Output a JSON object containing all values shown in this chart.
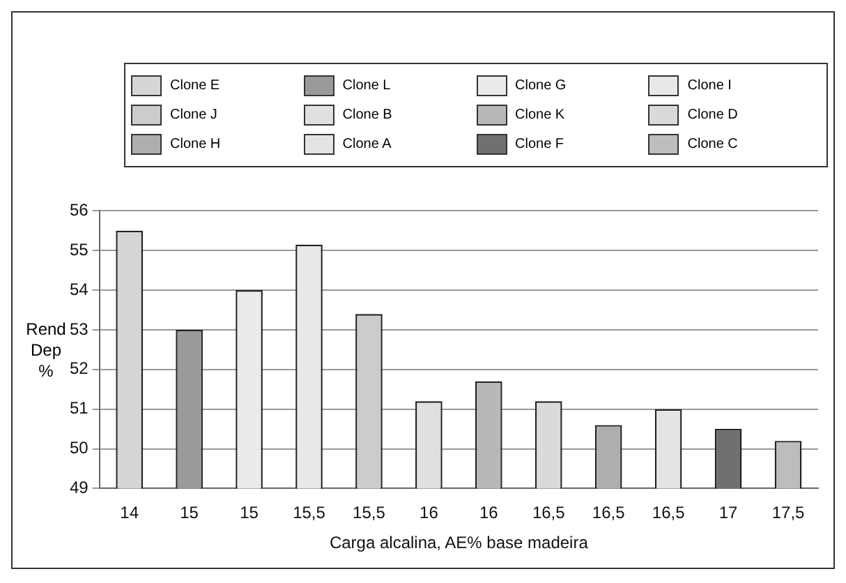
{
  "chart_data": {
    "type": "bar",
    "xlabel": "Carga alcalina, AE% base madeira",
    "ylabel": "Rend Dep %",
    "categories": [
      "14",
      "15",
      "15",
      "15,5",
      "15,5",
      "16",
      "16",
      "16,5",
      "16,5",
      "16,5",
      "17",
      "17,5"
    ],
    "series": [
      {
        "name": "Clone E",
        "color": "#d6d6d6",
        "values": [
          55.5,
          null,
          null,
          null,
          null,
          null,
          null,
          null,
          null,
          null,
          null,
          null
        ]
      },
      {
        "name": "Clone L",
        "color": "#9a9a9a",
        "values": [
          null,
          53.0,
          null,
          null,
          null,
          null,
          null,
          null,
          null,
          null,
          null,
          null
        ]
      },
      {
        "name": "Clone G",
        "color": "#ebebeb",
        "values": [
          null,
          null,
          54.0,
          null,
          null,
          null,
          null,
          null,
          null,
          null,
          null,
          null
        ]
      },
      {
        "name": "Clone I",
        "color": "#e8e8e8",
        "values": [
          null,
          null,
          null,
          55.15,
          null,
          null,
          null,
          null,
          null,
          null,
          null,
          null
        ]
      },
      {
        "name": "Clone J",
        "color": "#cccccc",
        "values": [
          null,
          null,
          null,
          null,
          53.4,
          null,
          null,
          null,
          null,
          null,
          null,
          null
        ]
      },
      {
        "name": "Clone B",
        "color": "#e0e0e0",
        "values": [
          null,
          null,
          null,
          null,
          null,
          51.2,
          null,
          null,
          null,
          null,
          null,
          null
        ]
      },
      {
        "name": "Clone K",
        "color": "#b8b8b8",
        "values": [
          null,
          null,
          null,
          null,
          null,
          null,
          51.7,
          null,
          null,
          null,
          null,
          null
        ]
      },
      {
        "name": "Clone D",
        "color": "#dadada",
        "values": [
          null,
          null,
          null,
          null,
          null,
          null,
          null,
          51.2,
          null,
          null,
          null,
          null
        ]
      },
      {
        "name": "Clone H",
        "color": "#aeaeae",
        "values": [
          null,
          null,
          null,
          null,
          null,
          null,
          null,
          null,
          50.6,
          null,
          null,
          null
        ]
      },
      {
        "name": "Clone A",
        "color": "#e4e4e4",
        "values": [
          null,
          null,
          null,
          null,
          null,
          null,
          null,
          null,
          null,
          51.0,
          null,
          null
        ]
      },
      {
        "name": "Clone F",
        "color": "#707070",
        "values": [
          null,
          null,
          null,
          null,
          null,
          null,
          null,
          null,
          null,
          null,
          50.5,
          null
        ]
      },
      {
        "name": "Clone C",
        "color": "#bdbdbd",
        "values": [
          null,
          null,
          null,
          null,
          null,
          null,
          null,
          null,
          null,
          null,
          null,
          50.2
        ]
      }
    ],
    "ylim": [
      49,
      56
    ],
    "yticks": [
      49,
      50,
      51,
      52,
      53,
      54,
      55,
      56
    ],
    "grid": "y",
    "legend": "top"
  }
}
